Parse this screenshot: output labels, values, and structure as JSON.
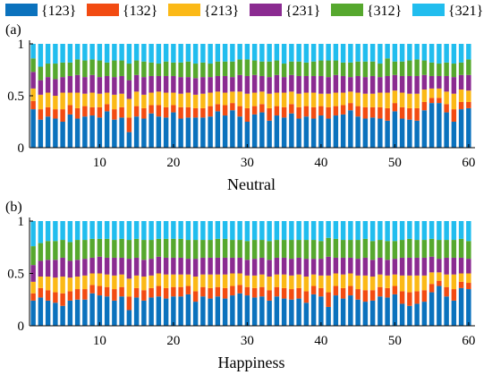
{
  "colors": [
    "#0b72bd",
    "#f24b12",
    "#fbb917",
    "#8b2b91",
    "#56a82e",
    "#21bdee"
  ],
  "legend": [
    "{123}",
    "{132}",
    "{213}",
    "{231}",
    "{312}",
    "{321}"
  ],
  "chart_data": [
    {
      "type": "bar",
      "stacked": true,
      "panel_label": "(a)",
      "xlabel": "Neutral",
      "ylabel": "",
      "ylim": [
        0,
        1
      ],
      "yticks": [
        0,
        0.5,
        1
      ],
      "ytick_labels": [
        "0",
        "0.5",
        "1"
      ],
      "xticks": [
        10,
        20,
        30,
        40,
        50,
        60
      ],
      "x": [
        1,
        2,
        3,
        4,
        5,
        6,
        7,
        8,
        9,
        10,
        11,
        12,
        13,
        14,
        15,
        16,
        17,
        18,
        19,
        20,
        21,
        22,
        23,
        24,
        25,
        26,
        27,
        28,
        29,
        30,
        31,
        32,
        33,
        34,
        35,
        36,
        37,
        38,
        39,
        40,
        41,
        42,
        43,
        44,
        45,
        46,
        47,
        48,
        49,
        50,
        51,
        52,
        53,
        54,
        55,
        56,
        57,
        58,
        59,
        60
      ],
      "series": [
        {
          "name": "{123}",
          "values": [
            0.37,
            0.27,
            0.3,
            0.28,
            0.25,
            0.32,
            0.28,
            0.3,
            0.31,
            0.29,
            0.35,
            0.27,
            0.29,
            0.15,
            0.3,
            0.28,
            0.33,
            0.3,
            0.29,
            0.34,
            0.28,
            0.29,
            0.29,
            0.29,
            0.3,
            0.35,
            0.31,
            0.36,
            0.3,
            0.25,
            0.32,
            0.34,
            0.26,
            0.31,
            0.29,
            0.33,
            0.28,
            0.3,
            0.28,
            0.31,
            0.28,
            0.31,
            0.32,
            0.36,
            0.3,
            0.28,
            0.29,
            0.28,
            0.26,
            0.35,
            0.28,
            0.27,
            0.26,
            0.36,
            0.43,
            0.43,
            0.34,
            0.25,
            0.37,
            0.38
          ]
        },
        {
          "name": "{132}",
          "values": [
            0.08,
            0.1,
            0.09,
            0.09,
            0.12,
            0.09,
            0.1,
            0.1,
            0.08,
            0.1,
            0.07,
            0.1,
            0.1,
            0.14,
            0.1,
            0.1,
            0.08,
            0.11,
            0.1,
            0.07,
            0.11,
            0.1,
            0.09,
            0.09,
            0.1,
            0.07,
            0.1,
            0.07,
            0.1,
            0.13,
            0.08,
            0.08,
            0.12,
            0.09,
            0.1,
            0.09,
            0.11,
            0.1,
            0.11,
            0.09,
            0.11,
            0.09,
            0.09,
            0.07,
            0.1,
            0.11,
            0.1,
            0.11,
            0.12,
            0.08,
            0.11,
            0.11,
            0.12,
            0.08,
            0.05,
            0.05,
            0.08,
            0.12,
            0.07,
            0.06
          ]
        },
        {
          "name": "{213}",
          "values": [
            0.12,
            0.14,
            0.14,
            0.13,
            0.16,
            0.12,
            0.15,
            0.12,
            0.14,
            0.13,
            0.11,
            0.14,
            0.13,
            0.18,
            0.14,
            0.13,
            0.12,
            0.13,
            0.14,
            0.12,
            0.13,
            0.14,
            0.13,
            0.14,
            0.13,
            0.12,
            0.12,
            0.11,
            0.14,
            0.14,
            0.13,
            0.12,
            0.14,
            0.13,
            0.14,
            0.12,
            0.13,
            0.13,
            0.14,
            0.12,
            0.13,
            0.13,
            0.12,
            0.11,
            0.13,
            0.13,
            0.13,
            0.14,
            0.15,
            0.12,
            0.14,
            0.14,
            0.14,
            0.12,
            0.09,
            0.09,
            0.12,
            0.15,
            0.12,
            0.11
          ]
        },
        {
          "name": "{231}",
          "values": [
            0.16,
            0.14,
            0.15,
            0.16,
            0.15,
            0.16,
            0.17,
            0.16,
            0.17,
            0.16,
            0.16,
            0.17,
            0.17,
            0.18,
            0.16,
            0.17,
            0.16,
            0.15,
            0.16,
            0.16,
            0.16,
            0.15,
            0.16,
            0.16,
            0.15,
            0.15,
            0.16,
            0.14,
            0.16,
            0.17,
            0.17,
            0.15,
            0.16,
            0.17,
            0.15,
            0.16,
            0.17,
            0.16,
            0.16,
            0.17,
            0.16,
            0.17,
            0.16,
            0.14,
            0.16,
            0.16,
            0.17,
            0.15,
            0.16,
            0.15,
            0.16,
            0.17,
            0.17,
            0.14,
            0.12,
            0.12,
            0.15,
            0.16,
            0.14,
            0.15
          ]
        },
        {
          "name": "{312}",
          "values": [
            0.13,
            0.13,
            0.13,
            0.15,
            0.14,
            0.13,
            0.15,
            0.16,
            0.15,
            0.16,
            0.13,
            0.16,
            0.15,
            0.16,
            0.14,
            0.15,
            0.13,
            0.12,
            0.14,
            0.13,
            0.14,
            0.15,
            0.14,
            0.14,
            0.13,
            0.14,
            0.14,
            0.15,
            0.15,
            0.16,
            0.14,
            0.14,
            0.15,
            0.14,
            0.13,
            0.13,
            0.14,
            0.13,
            0.14,
            0.15,
            0.16,
            0.14,
            0.13,
            0.14,
            0.14,
            0.15,
            0.14,
            0.13,
            0.17,
            0.13,
            0.14,
            0.15,
            0.16,
            0.14,
            0.13,
            0.12,
            0.13,
            0.13,
            0.12,
            0.15
          ]
        },
        {
          "name": "{321}",
          "values": [
            0.14,
            0.22,
            0.19,
            0.19,
            0.18,
            0.18,
            0.15,
            0.16,
            0.15,
            0.16,
            0.18,
            0.16,
            0.16,
            0.19,
            0.16,
            0.17,
            0.18,
            0.19,
            0.17,
            0.18,
            0.18,
            0.17,
            0.19,
            0.18,
            0.19,
            0.17,
            0.17,
            0.17,
            0.15,
            0.15,
            0.16,
            0.17,
            0.17,
            0.16,
            0.19,
            0.17,
            0.17,
            0.18,
            0.17,
            0.16,
            0.16,
            0.16,
            0.18,
            0.18,
            0.17,
            0.17,
            0.17,
            0.19,
            0.14,
            0.17,
            0.17,
            0.16,
            0.15,
            0.16,
            0.18,
            0.19,
            0.18,
            0.19,
            0.18,
            0.15
          ]
        }
      ]
    },
    {
      "type": "bar",
      "stacked": true,
      "panel_label": "(b)",
      "xlabel": "Happiness",
      "ylabel": "",
      "ylim": [
        0,
        1
      ],
      "yticks": [
        0,
        0.5,
        1
      ],
      "ytick_labels": [
        "0",
        "0.5",
        "1"
      ],
      "xticks": [
        10,
        20,
        30,
        40,
        50,
        60
      ],
      "x": [
        1,
        2,
        3,
        4,
        5,
        6,
        7,
        8,
        9,
        10,
        11,
        12,
        13,
        14,
        15,
        16,
        17,
        18,
        19,
        20,
        21,
        22,
        23,
        24,
        25,
        26,
        27,
        28,
        29,
        30,
        31,
        32,
        33,
        34,
        35,
        36,
        37,
        38,
        39,
        40,
        41,
        42,
        43,
        44,
        45,
        46,
        47,
        48,
        49,
        50,
        51,
        52,
        53,
        54,
        55,
        56,
        57,
        58,
        59,
        60
      ],
      "series": [
        {
          "name": "{123}",
          "values": [
            0.24,
            0.27,
            0.24,
            0.22,
            0.19,
            0.24,
            0.25,
            0.25,
            0.31,
            0.29,
            0.28,
            0.24,
            0.28,
            0.15,
            0.27,
            0.24,
            0.27,
            0.28,
            0.26,
            0.28,
            0.28,
            0.3,
            0.23,
            0.28,
            0.26,
            0.28,
            0.26,
            0.29,
            0.31,
            0.29,
            0.27,
            0.28,
            0.24,
            0.28,
            0.26,
            0.25,
            0.26,
            0.22,
            0.3,
            0.28,
            0.18,
            0.29,
            0.26,
            0.29,
            0.25,
            0.23,
            0.24,
            0.28,
            0.27,
            0.3,
            0.21,
            0.19,
            0.21,
            0.23,
            0.32,
            0.38,
            0.28,
            0.24,
            0.36,
            0.35
          ]
        },
        {
          "name": "{132}",
          "values": [
            0.07,
            0.09,
            0.1,
            0.1,
            0.12,
            0.09,
            0.1,
            0.1,
            0.08,
            0.09,
            0.09,
            0.11,
            0.09,
            0.13,
            0.09,
            0.1,
            0.09,
            0.1,
            0.1,
            0.09,
            0.09,
            0.08,
            0.1,
            0.09,
            0.1,
            0.09,
            0.1,
            0.09,
            0.08,
            0.08,
            0.09,
            0.09,
            0.1,
            0.09,
            0.1,
            0.1,
            0.1,
            0.11,
            0.08,
            0.08,
            0.14,
            0.09,
            0.1,
            0.09,
            0.1,
            0.11,
            0.1,
            0.09,
            0.09,
            0.08,
            0.12,
            0.13,
            0.12,
            0.11,
            0.08,
            0.05,
            0.09,
            0.11,
            0.06,
            0.06
          ]
        },
        {
          "name": "{213}",
          "values": [
            0.11,
            0.11,
            0.13,
            0.14,
            0.16,
            0.13,
            0.12,
            0.13,
            0.11,
            0.12,
            0.12,
            0.13,
            0.12,
            0.17,
            0.12,
            0.13,
            0.12,
            0.12,
            0.13,
            0.12,
            0.12,
            0.11,
            0.14,
            0.12,
            0.13,
            0.12,
            0.13,
            0.12,
            0.11,
            0.11,
            0.12,
            0.12,
            0.13,
            0.12,
            0.13,
            0.13,
            0.13,
            0.14,
            0.11,
            0.12,
            0.16,
            0.12,
            0.13,
            0.12,
            0.13,
            0.14,
            0.13,
            0.12,
            0.12,
            0.11,
            0.15,
            0.16,
            0.15,
            0.14,
            0.11,
            0.08,
            0.12,
            0.14,
            0.08,
            0.09
          ]
        },
        {
          "name": "{231}",
          "values": [
            0.16,
            0.15,
            0.16,
            0.17,
            0.18,
            0.16,
            0.16,
            0.16,
            0.15,
            0.16,
            0.16,
            0.17,
            0.16,
            0.19,
            0.17,
            0.16,
            0.16,
            0.16,
            0.16,
            0.16,
            0.16,
            0.15,
            0.17,
            0.16,
            0.16,
            0.16,
            0.16,
            0.15,
            0.15,
            0.15,
            0.16,
            0.16,
            0.16,
            0.16,
            0.16,
            0.16,
            0.16,
            0.17,
            0.15,
            0.16,
            0.18,
            0.15,
            0.16,
            0.15,
            0.16,
            0.17,
            0.16,
            0.16,
            0.15,
            0.15,
            0.17,
            0.17,
            0.17,
            0.17,
            0.15,
            0.13,
            0.16,
            0.16,
            0.15,
            0.14
          ]
        },
        {
          "name": "{312}",
          "values": [
            0.18,
            0.17,
            0.18,
            0.18,
            0.17,
            0.18,
            0.19,
            0.18,
            0.18,
            0.17,
            0.18,
            0.17,
            0.18,
            0.18,
            0.18,
            0.19,
            0.18,
            0.17,
            0.18,
            0.18,
            0.18,
            0.18,
            0.18,
            0.17,
            0.17,
            0.18,
            0.18,
            0.17,
            0.17,
            0.18,
            0.18,
            0.17,
            0.18,
            0.17,
            0.17,
            0.18,
            0.17,
            0.18,
            0.18,
            0.17,
            0.18,
            0.18,
            0.17,
            0.17,
            0.18,
            0.18,
            0.18,
            0.17,
            0.18,
            0.17,
            0.17,
            0.18,
            0.17,
            0.17,
            0.17,
            0.18,
            0.17,
            0.17,
            0.18,
            0.17
          ]
        },
        {
          "name": "{321}",
          "values": [
            0.24,
            0.21,
            0.19,
            0.19,
            0.18,
            0.2,
            0.18,
            0.18,
            0.17,
            0.17,
            0.17,
            0.18,
            0.17,
            0.18,
            0.17,
            0.18,
            0.18,
            0.17,
            0.17,
            0.17,
            0.17,
            0.18,
            0.18,
            0.18,
            0.18,
            0.17,
            0.17,
            0.18,
            0.18,
            0.19,
            0.18,
            0.18,
            0.19,
            0.18,
            0.18,
            0.18,
            0.18,
            0.18,
            0.18,
            0.19,
            0.16,
            0.17,
            0.18,
            0.18,
            0.18,
            0.17,
            0.19,
            0.18,
            0.19,
            0.19,
            0.18,
            0.17,
            0.18,
            0.18,
            0.17,
            0.18,
            0.18,
            0.18,
            0.17,
            0.19
          ]
        }
      ]
    }
  ]
}
